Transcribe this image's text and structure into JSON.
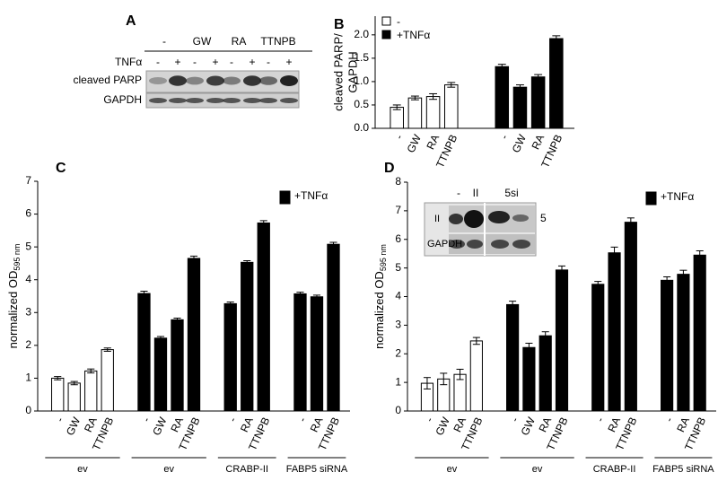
{
  "blot_a": {
    "panel_label": "A",
    "treatments": [
      "-",
      "GW",
      "RA",
      "TTNPB"
    ],
    "tnf_label": "TNFα",
    "tnf_signs": [
      "-",
      "+",
      "-",
      "+",
      "-",
      "+",
      "-",
      "+"
    ],
    "rows": [
      "cleaved PARP",
      "GAPDH"
    ]
  },
  "inset_d": {
    "lanes": [
      "-",
      "II",
      "5si"
    ],
    "row_labels": [
      "II",
      "GAPDH"
    ],
    "side_label": "5"
  },
  "chart_data": [
    {
      "type": "bar",
      "panel_label": "B",
      "ylabel_lines": [
        "cleaved PARP/",
        "GAPDH"
      ],
      "categories": [
        "-",
        "GW",
        "RA",
        "TTNPB",
        "-",
        "GW",
        "RA",
        "TTNPB"
      ],
      "series": [
        {
          "name": "-",
          "color": "#ffffff",
          "values": [
            0.45,
            0.65,
            0.68,
            0.93,
            null,
            null,
            null,
            null
          ],
          "errors": [
            0.05,
            0.04,
            0.06,
            0.05,
            null,
            null,
            null,
            null
          ]
        },
        {
          "name": "+TNFα",
          "color": "#000000",
          "values": [
            null,
            null,
            null,
            null,
            1.32,
            0.88,
            1.1,
            1.92
          ],
          "errors": [
            null,
            null,
            null,
            null,
            0.05,
            0.05,
            0.05,
            0.06
          ]
        }
      ],
      "ylim": [
        0,
        2.4
      ],
      "yticks": [
        {
          "value": 0,
          "label": "0.0"
        },
        0.5,
        {
          "value": 1,
          "label": "1.0"
        },
        1.5,
        {
          "value": 2,
          "label": "2.0"
        }
      ],
      "legend": "upper left"
    },
    {
      "type": "bar",
      "panel_label": "C",
      "ylabel": "normalized OD",
      "ylabel_sub": "595 nm",
      "groups": [
        {
          "label": "ev",
          "categories": [
            "-",
            "GW",
            "RA",
            "TTNPB"
          ]
        },
        {
          "label": "ev",
          "categories": [
            "-",
            "GW",
            "RA",
            "TTNPB"
          ]
        },
        {
          "label": "CRABP-II",
          "categories": [
            "-",
            "RA",
            "TTNPB"
          ]
        },
        {
          "label": "FABP5 siRNA",
          "categories": [
            "-",
            "RA",
            "TTNPB"
          ]
        }
      ],
      "series": [
        {
          "color": "#ffffff",
          "values": [
            1.0,
            0.85,
            1.22,
            1.87,
            null,
            null,
            null,
            null,
            null,
            null,
            null,
            null,
            null,
            null
          ],
          "errors": [
            0.05,
            0.05,
            0.06,
            0.05,
            null,
            null,
            null,
            null,
            null,
            null,
            null,
            null,
            null,
            null
          ]
        },
        {
          "name": "+TNFα",
          "color": "#000000",
          "values": [
            null,
            null,
            null,
            null,
            3.58,
            2.22,
            2.78,
            4.65,
            3.27,
            4.53,
            5.73,
            3.57,
            3.48,
            5.08
          ],
          "errors": [
            null,
            null,
            null,
            null,
            0.07,
            0.05,
            0.05,
            0.07,
            0.05,
            0.05,
            0.07,
            0.05,
            0.05,
            0.06
          ]
        }
      ],
      "ylim": [
        0,
        7
      ],
      "yticks": [
        0,
        1,
        2,
        3,
        4,
        5,
        6,
        7
      ],
      "legend": "upper right"
    },
    {
      "type": "bar",
      "panel_label": "D",
      "ylabel": "normalized OD",
      "ylabel_sub": "595 nm",
      "groups": [
        {
          "label": "ev",
          "categories": [
            "-",
            "GW",
            "RA",
            "TTNPB"
          ]
        },
        {
          "label": "ev",
          "categories": [
            "-",
            "GW",
            "RA",
            "TTNPB"
          ]
        },
        {
          "label": "CRABP-II",
          "categories": [
            "-",
            "RA",
            "TTNPB"
          ]
        },
        {
          "label": "FABP5 siRNA",
          "categories": [
            "-",
            "RA",
            "TTNPB"
          ]
        }
      ],
      "series": [
        {
          "color": "#ffffff",
          "values": [
            0.97,
            1.12,
            1.28,
            2.45,
            null,
            null,
            null,
            null,
            null,
            null,
            null,
            null,
            null,
            null
          ],
          "errors": [
            0.2,
            0.2,
            0.18,
            0.12,
            null,
            null,
            null,
            null,
            null,
            null,
            null,
            null,
            null,
            null
          ]
        },
        {
          "name": "+TNFα",
          "color": "#000000",
          "values": [
            null,
            null,
            null,
            null,
            3.72,
            2.22,
            2.63,
            4.93,
            4.43,
            5.53,
            6.6,
            4.57,
            4.78,
            5.45
          ],
          "errors": [
            null,
            null,
            null,
            null,
            0.12,
            0.15,
            0.14,
            0.14,
            0.1,
            0.2,
            0.15,
            0.12,
            0.14,
            0.15
          ]
        }
      ],
      "ylim": [
        0,
        8
      ],
      "yticks": [
        0,
        1,
        2,
        3,
        4,
        5,
        6,
        7,
        8
      ],
      "legend": "upper right"
    }
  ]
}
